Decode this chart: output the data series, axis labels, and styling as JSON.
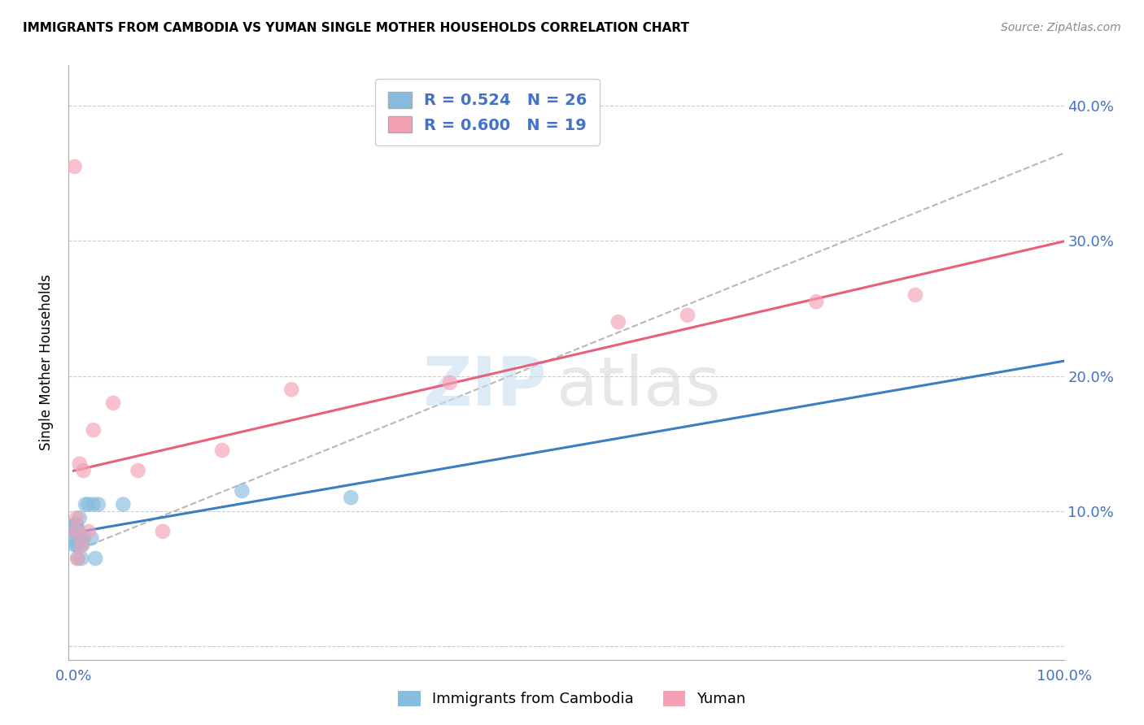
{
  "title": "IMMIGRANTS FROM CAMBODIA VS YUMAN SINGLE MOTHER HOUSEHOLDS CORRELATION CHART",
  "source": "Source: ZipAtlas.com",
  "ylabel": "Single Mother Households",
  "xlim": [
    0,
    1.0
  ],
  "ylim": [
    -0.01,
    0.43
  ],
  "x_ticks": [
    0.0,
    1.0
  ],
  "x_tick_labels": [
    "0.0%",
    "100.0%"
  ],
  "y_ticks": [
    0.0,
    0.1,
    0.2,
    0.3,
    0.4
  ],
  "y_tick_labels": [
    "",
    "10.0%",
    "20.0%",
    "30.0%",
    "40.0%"
  ],
  "legend_r1": "R = 0.524",
  "legend_n1": "N = 26",
  "legend_r2": "R = 0.600",
  "legend_n2": "N = 19",
  "legend_label1": "Immigrants from Cambodia",
  "legend_label2": "Yuman",
  "color_blue": "#87BCDE",
  "color_pink": "#F4A0B5",
  "trendline_blue_color": "#3a7fc1",
  "trendline_pink_color": "#e8607a",
  "trendline_dashed_color": "#b0b0b0",
  "cambodia_x": [
    0.001,
    0.001,
    0.001,
    0.002,
    0.002,
    0.002,
    0.003,
    0.003,
    0.004,
    0.004,
    0.005,
    0.005,
    0.006,
    0.007,
    0.008,
    0.009,
    0.01,
    0.012,
    0.015,
    0.018,
    0.02,
    0.022,
    0.025,
    0.05,
    0.17,
    0.28
  ],
  "cambodia_y": [
    0.085,
    0.09,
    0.075,
    0.09,
    0.085,
    0.08,
    0.09,
    0.075,
    0.085,
    0.065,
    0.085,
    0.075,
    0.095,
    0.08,
    0.065,
    0.075,
    0.08,
    0.105,
    0.105,
    0.08,
    0.105,
    0.065,
    0.105,
    0.105,
    0.115,
    0.11
  ],
  "yuman_x": [
    0.001,
    0.002,
    0.003,
    0.004,
    0.006,
    0.008,
    0.01,
    0.015,
    0.02,
    0.04,
    0.065,
    0.09,
    0.15,
    0.22,
    0.38,
    0.55,
    0.62,
    0.75,
    0.85
  ],
  "yuman_y": [
    0.355,
    0.085,
    0.095,
    0.065,
    0.135,
    0.075,
    0.13,
    0.085,
    0.16,
    0.18,
    0.13,
    0.085,
    0.145,
    0.19,
    0.195,
    0.24,
    0.245,
    0.255,
    0.26
  ],
  "dashed_line_x": [
    0.0,
    1.0
  ],
  "dashed_line_y_start": 0.07,
  "dashed_line_y_end": 0.365
}
